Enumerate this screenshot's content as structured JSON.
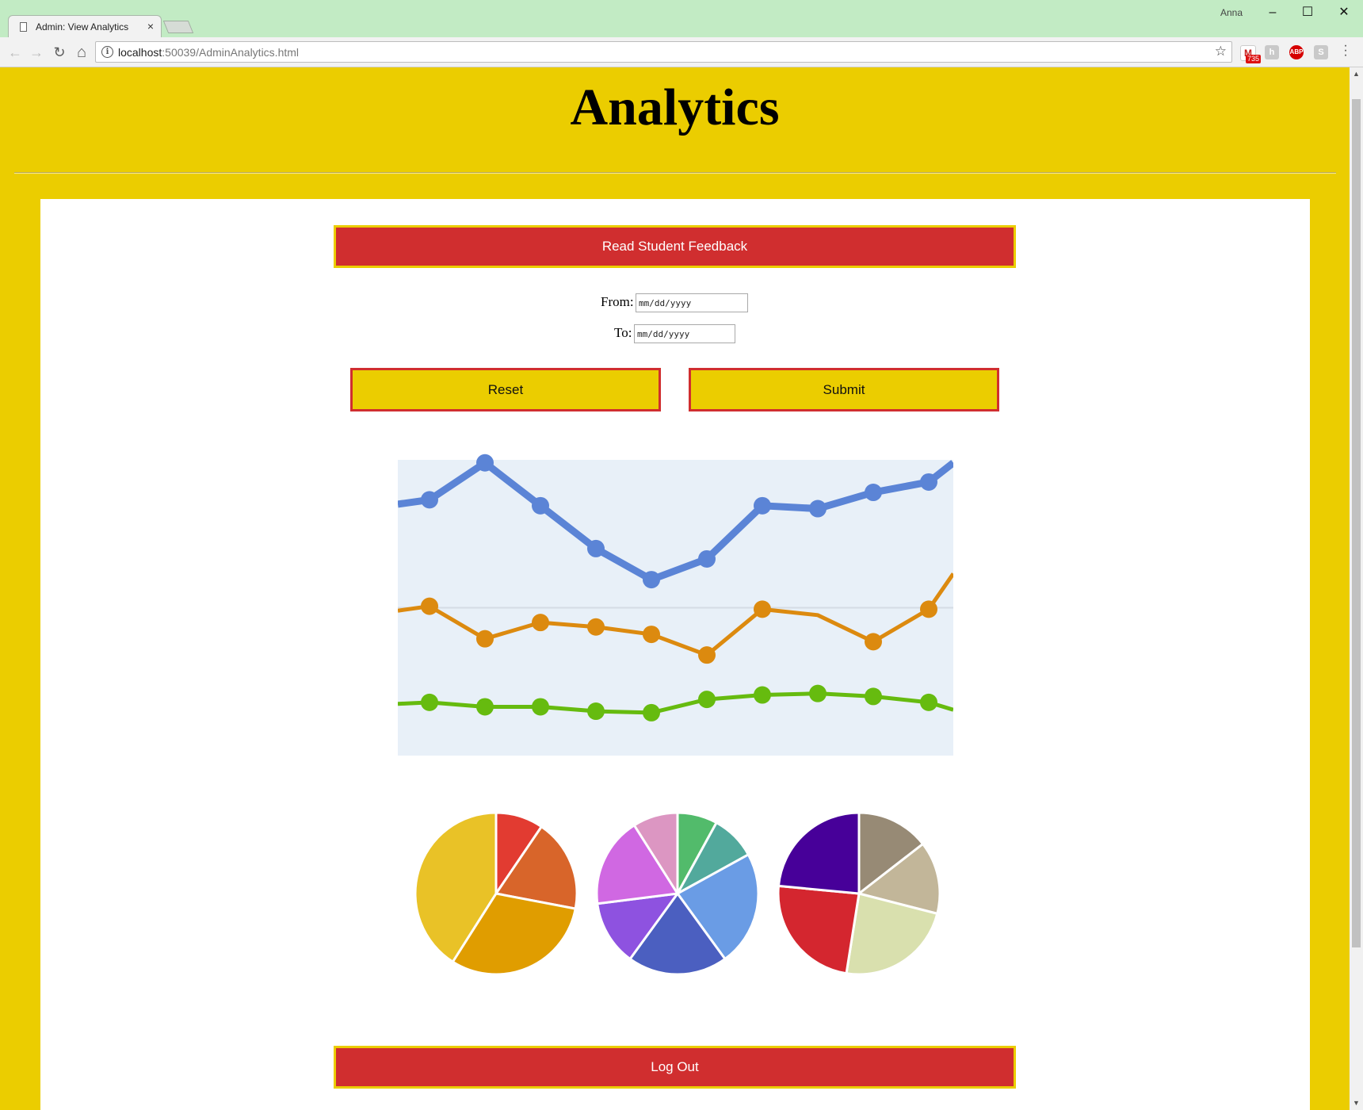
{
  "browser": {
    "tab_title": "Admin: View Analytics",
    "tab_close": "×",
    "user": "Anna",
    "url_host": "localhost",
    "url_rest": ":50039/AdminAnalytics.html",
    "gmail_badge": "735",
    "minimize": "–",
    "maximize": "☐",
    "close": "✕",
    "back": "←",
    "forward": "→",
    "reload": "↻",
    "home": "⌂",
    "star": "☆",
    "abp": "ABP"
  },
  "page": {
    "title": "Analytics",
    "feedback_button": "Read Student Feedback",
    "from_label": "From:",
    "to_label": "To:",
    "date_placeholder": "mm/dd/yyyy",
    "reset_button": "Reset",
    "submit_button": "Submit",
    "logout_button": "Log Out"
  },
  "chart_data": [
    {
      "type": "line",
      "x": [
        1,
        2,
        3,
        4,
        5,
        6,
        7,
        8,
        9,
        10
      ],
      "ylim": [
        0,
        100
      ],
      "background": "#e8f0f8",
      "series": [
        {
          "color": "#5b84d6",
          "values": [
            86.5,
            99,
            84.5,
            70,
            59.5,
            66.5,
            84.5,
            83.5,
            89,
            92.5
          ],
          "left_edge": 85,
          "right_edge": 99
        },
        {
          "color": "#dc8a0f",
          "values": [
            50.5,
            39.5,
            45,
            43.5,
            41,
            34,
            49.5,
            null,
            38.5,
            49.5
          ],
          "left_edge": 49,
          "right_edge": 61.5,
          "unmarked_point": {
            "x": 8,
            "y": 47.5
          }
        },
        {
          "color": "#66bb0f",
          "values": [
            18,
            16.5,
            16.5,
            15,
            14.5,
            19,
            20.5,
            21,
            20,
            18
          ],
          "left_edge": 17.5,
          "right_edge": 15.5
        }
      ]
    },
    {
      "type": "pie",
      "slices": [
        {
          "value": 9.5,
          "color": "#e23b31"
        },
        {
          "value": 18.5,
          "color": "#d8652a"
        },
        {
          "value": 31,
          "color": "#e09d00"
        },
        {
          "value": 41,
          "color": "#e9c227"
        }
      ]
    },
    {
      "type": "pie",
      "slices": [
        {
          "value": 8,
          "color": "#52bb6b"
        },
        {
          "value": 9,
          "color": "#52a99c"
        },
        {
          "value": 23,
          "color": "#6a9ce5"
        },
        {
          "value": 20,
          "color": "#4b5fc0"
        },
        {
          "value": 13,
          "color": "#8e52e0"
        },
        {
          "value": 18,
          "color": "#d068e2"
        },
        {
          "value": 9,
          "color": "#dc96c2"
        }
      ]
    },
    {
      "type": "pie",
      "slices": [
        {
          "value": 14.5,
          "color": "#978a75"
        },
        {
          "value": 14.5,
          "color": "#c2b699"
        },
        {
          "value": 23.5,
          "color": "#d9e0ae"
        },
        {
          "value": 24,
          "color": "#d4262f"
        },
        {
          "value": 23.5,
          "color": "#470099"
        }
      ]
    }
  ]
}
